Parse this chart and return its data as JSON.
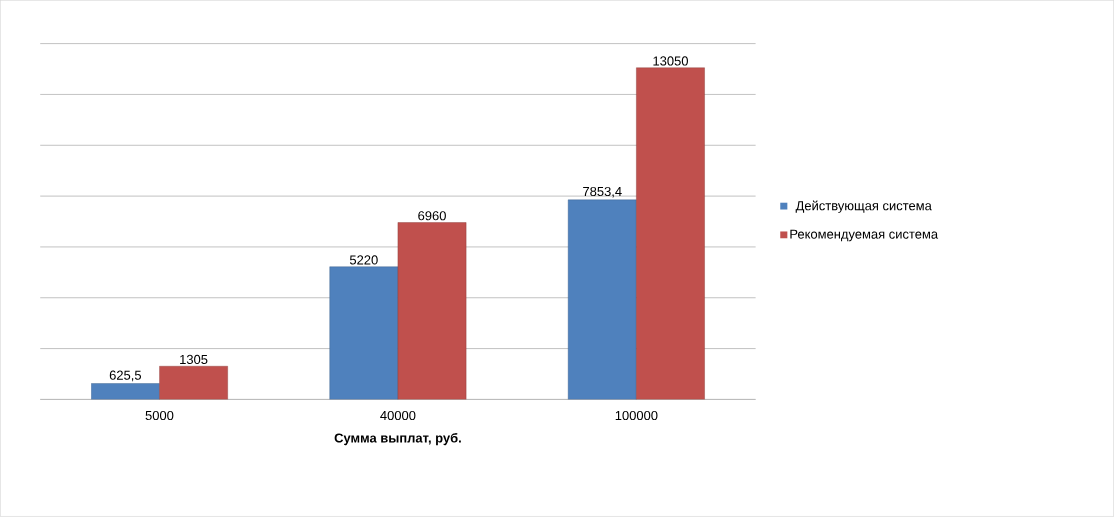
{
  "chart_data": {
    "type": "bar",
    "xlabel": "Сумма выплат, руб.",
    "categories": [
      "5000",
      "40000",
      "100000"
    ],
    "series": [
      {
        "name": "Действующая система",
        "color": "#4f81bd",
        "values": [
          625.5,
          5220,
          7853.4
        ],
        "value_labels": [
          "625,5",
          "5220",
          "7853,4"
        ]
      },
      {
        "name": "Рекомендуемая система",
        "color": "#c0504d",
        "values": [
          1305,
          6960,
          13050
        ],
        "value_labels": [
          "1305",
          "6960",
          "13050"
        ]
      }
    ],
    "grid": "y",
    "legend": "right"
  }
}
